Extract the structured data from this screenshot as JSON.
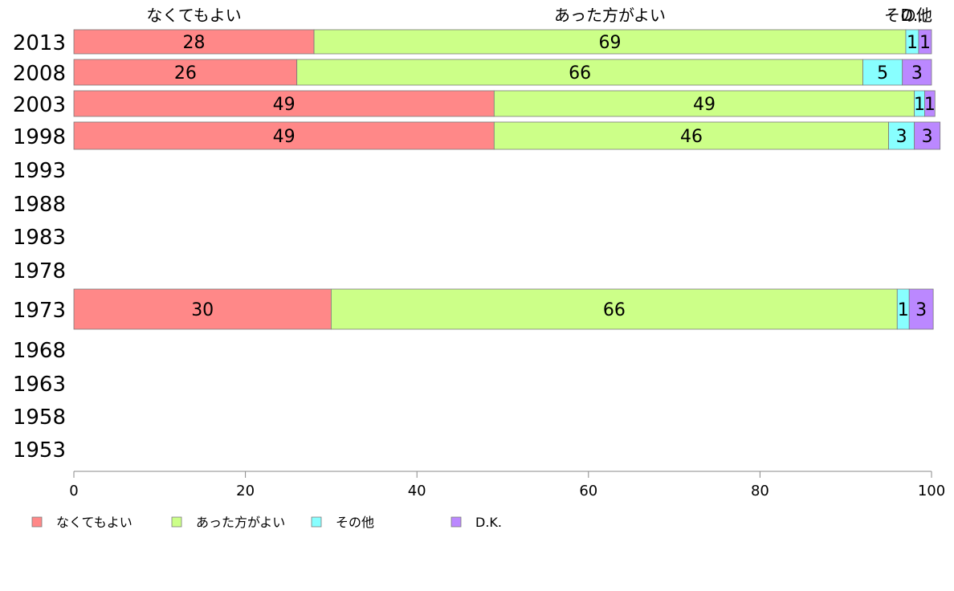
{
  "chart_data": {
    "type": "bar",
    "orientation": "horizontal",
    "stacked": true,
    "title": "",
    "xlabel": "",
    "ylabel": "",
    "xlim": [
      0,
      100
    ],
    "x_ticks": [
      "0",
      "20",
      "40",
      "60",
      "80",
      "100"
    ],
    "categories": [
      "2013",
      "2008",
      "2003",
      "1998",
      "1993",
      "1988",
      "1983",
      "1978",
      "1973",
      "1968",
      "1963",
      "1958",
      "1953"
    ],
    "top_labels": [
      "なくてもよい",
      "あった方がよい",
      "その他",
      "D..."
    ],
    "series": [
      {
        "name": "なくてもよい",
        "color": "#ff8888",
        "values": [
          28,
          26,
          49,
          49,
          null,
          null,
          null,
          null,
          30,
          null,
          null,
          null,
          null
        ],
        "labels": [
          "28",
          "26",
          "49",
          "49",
          "",
          "",
          "",
          "",
          "30",
          "",
          "",
          "",
          ""
        ]
      },
      {
        "name": "あった方がよい",
        "color": "#ccff88",
        "values": [
          69,
          66,
          49,
          46,
          null,
          null,
          null,
          null,
          66,
          null,
          null,
          null,
          null
        ],
        "labels": [
          "69",
          "66",
          "49",
          "46",
          "",
          "",
          "",
          "",
          "66",
          "",
          "",
          "",
          ""
        ]
      },
      {
        "name": "その他",
        "color": "#88ffff",
        "values": [
          1.5,
          4.6,
          1.2,
          3,
          null,
          null,
          null,
          null,
          1.4,
          null,
          null,
          null,
          null
        ],
        "labels": [
          "1",
          "5",
          "1",
          "3",
          "",
          "",
          "",
          "",
          "1",
          "",
          "",
          "",
          ""
        ]
      },
      {
        "name": "D.K.",
        "color": "#bb88ff",
        "values": [
          1.5,
          3.4,
          1.2,
          3,
          null,
          null,
          null,
          null,
          2.8,
          null,
          null,
          null,
          null
        ],
        "labels": [
          "1",
          "3",
          "1",
          "3",
          "",
          "",
          "",
          "",
          "3",
          "",
          "",
          "",
          ""
        ]
      }
    ],
    "legend": {
      "position": "bottom-left",
      "items": [
        "なくてもよい",
        "あった方がよい",
        "その他",
        "D.K."
      ]
    },
    "grid": false
  }
}
